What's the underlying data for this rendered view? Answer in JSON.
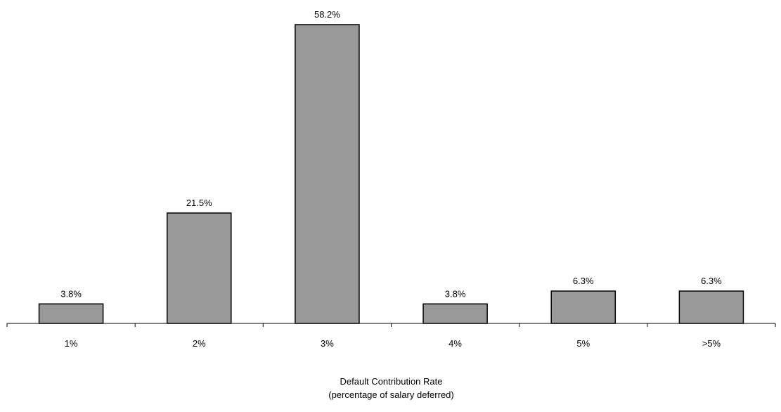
{
  "chart_data": {
    "type": "bar",
    "categories": [
      "1%",
      "2%",
      "3%",
      "4%",
      "5%",
      ">5%"
    ],
    "values": [
      3.8,
      21.5,
      58.2,
      3.8,
      6.3,
      6.3
    ],
    "data_labels": [
      "3.8%",
      "21.5%",
      "58.2%",
      "3.8%",
      "6.3%",
      "6.3%"
    ],
    "title": "",
    "xlabel": "Default Contribution Rate",
    "xlabel_line2": "(percentage of salary deferred)",
    "ylabel": "",
    "ylim": [
      0,
      58.2
    ],
    "grid": false,
    "bar_color": "#999999",
    "bar_edge_color": "#000000"
  }
}
